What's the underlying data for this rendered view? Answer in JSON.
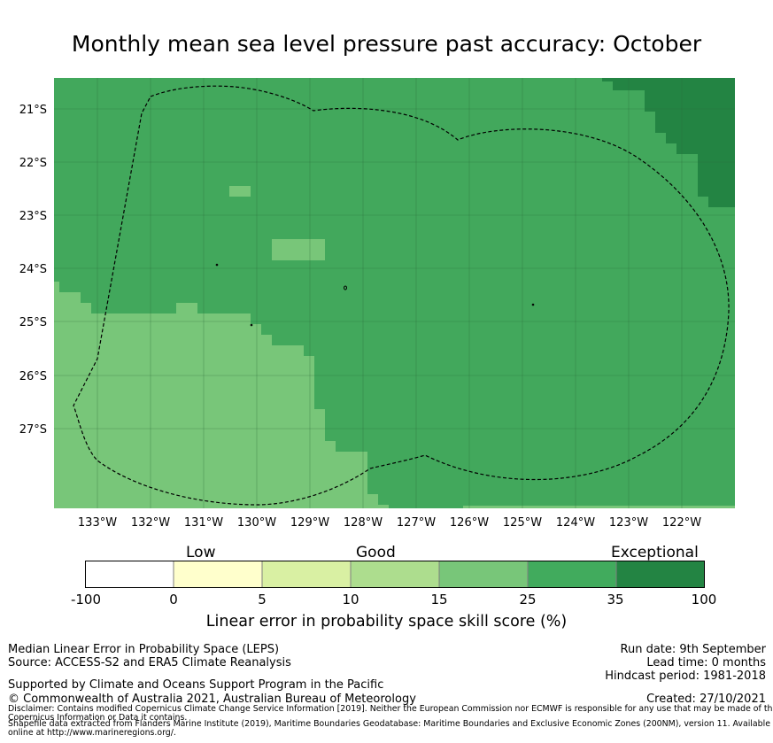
{
  "title": "Monthly mean sea level pressure past accuracy: October",
  "map": {
    "lon_ticks": [
      "133°W",
      "132°W",
      "131°W",
      "130°W",
      "129°W",
      "128°W",
      "127°W",
      "126°W",
      "125°W",
      "124°W",
      "123°W",
      "122°W"
    ],
    "lat_ticks": [
      "21°S",
      "22°S",
      "23°S",
      "24°S",
      "25°S",
      "26°S",
      "27°S"
    ],
    "region_outline": "EEZ boundary (dashed)",
    "colors": {
      "band_25_35": "#42a85c",
      "band_15_25": "#78c679",
      "band_35_100": "#238443"
    }
  },
  "colorbar": {
    "category_labels": {
      "low": "Low",
      "good": "Good",
      "exceptional": "Exceptional"
    },
    "tick_labels": [
      "-100",
      "0",
      "5",
      "10",
      "15",
      "25",
      "35",
      "100"
    ],
    "colors": [
      "#ffffff",
      "#ffffcc",
      "#d9f0a3",
      "#addd8e",
      "#78c679",
      "#41ab5d",
      "#238443"
    ],
    "label": "Linear error in probability space skill score (%)"
  },
  "footer": {
    "left": [
      "Median Linear Error in Probability Space (LEPS)",
      "Source: ACCESS-S2 and ERA5 Climate Reanalysis"
    ],
    "support": "Supported by Climate and Oceans Support Program in the Pacific",
    "copyright": "© Commonwealth of Australia 2021, Australian Bureau of Meteorology",
    "disclaimer_1": "Disclaimer: Contains modified Copernicus Climate Change Service Information [2019]. Neither the European Commission nor ECMWF is responsible for any use that may be made of the",
    "disclaimer_2": "Copernicus Information or Data it contains.",
    "shapefile_1": "Shapefile data extracted from Flanders Marine Institute (2019), Maritime Boundaries Geodatabase: Maritime Boundaries and Exclusive Economic Zones (200NM), version 11. Available",
    "shapefile_2": "online at http://www.marineregions.org/.",
    "run_date": "Run date: 9th September",
    "lead_time": "Lead time: 0 months",
    "hindcast": "Hindcast period: 1981-2018",
    "created": "Created: 27/10/2021"
  }
}
